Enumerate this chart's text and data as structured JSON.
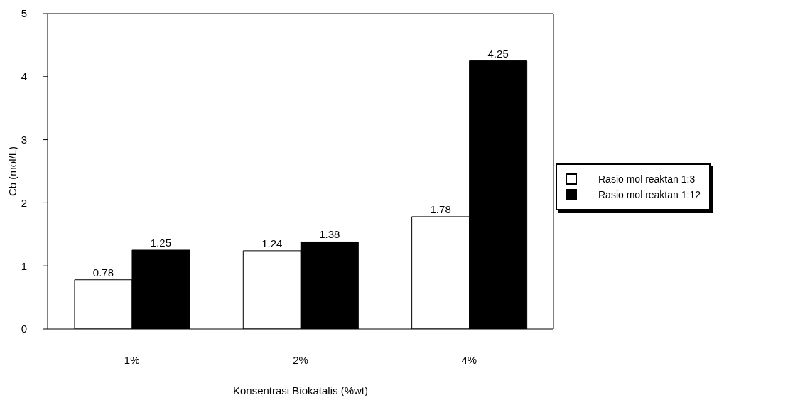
{
  "chart_data": {
    "type": "bar",
    "xlabel": "Konsentrasi Biokatalis (%wt)",
    "ylabel": "Cb (mol/L)",
    "categories": [
      "1%",
      "2%",
      "4%"
    ],
    "series": [
      {
        "name": "Rasio mol reaktan 1:3",
        "color": "#ffffff",
        "values": [
          0.78,
          1.24,
          1.78
        ]
      },
      {
        "name": "Rasio mol reaktan 1:12",
        "color": "#000000",
        "values": [
          1.25,
          1.38,
          4.25
        ]
      }
    ],
    "ylim": [
      0,
      5
    ],
    "yticks": [
      0,
      1,
      2,
      3,
      4,
      5
    ],
    "data_labels": true,
    "legend": "right",
    "grid": false
  }
}
